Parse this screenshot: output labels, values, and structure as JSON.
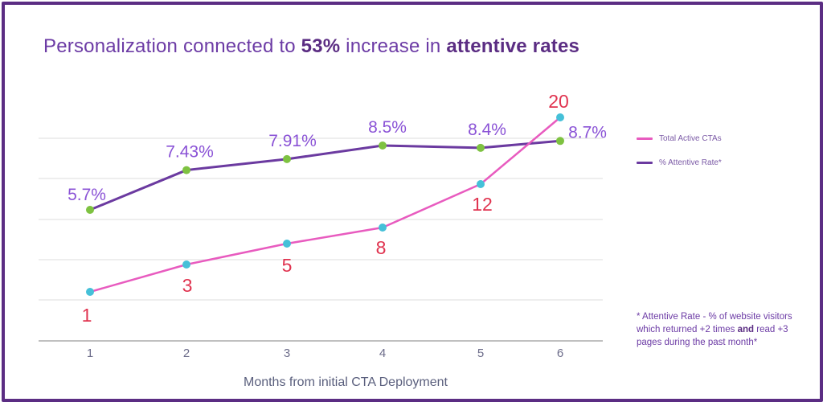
{
  "title": {
    "part1": "Personalization connected to ",
    "bold1": "53%",
    "part2": " increase in ",
    "bold2": "attentive rates"
  },
  "colors": {
    "frame": "#5b2d83",
    "purple_line": "#6b3aa0",
    "pink_line": "#e85bbf",
    "green_marker": "#7ec241",
    "blue_marker": "#45c0d8",
    "red_label": "#e0334f",
    "purple_label": "#8a52d6",
    "grid": "#dcdcdc"
  },
  "legend": {
    "items": [
      {
        "label": "Total Active CTAs",
        "color": "#e85bbf"
      },
      {
        "label": "% Attentive Rate*",
        "color": "#6b3aa0"
      }
    ]
  },
  "footnote": {
    "text1": "* Attentive Rate - % of website visitors which returned +2 times ",
    "bold": "and",
    "text2": " read +3 pages during the past month*"
  },
  "chart_data": {
    "type": "line",
    "x": [
      1,
      2,
      3,
      4,
      5,
      6
    ],
    "xlabel": "Months from initial CTA Deployment",
    "ylabel": "",
    "grid": true,
    "legend_position": "right",
    "series": [
      {
        "name": "Total Active CTAs",
        "values": [
          1,
          3,
          5,
          8,
          12,
          20
        ],
        "labels": [
          "1",
          "3",
          "5",
          "8",
          "12",
          "20"
        ]
      },
      {
        "name": "% Attentive Rate*",
        "values": [
          5.7,
          7.43,
          7.91,
          8.5,
          8.4,
          8.7
        ],
        "labels": [
          "5.7%",
          "7.43%",
          "7.91%",
          "8.5%",
          "8.4%",
          "8.7%"
        ]
      }
    ]
  }
}
